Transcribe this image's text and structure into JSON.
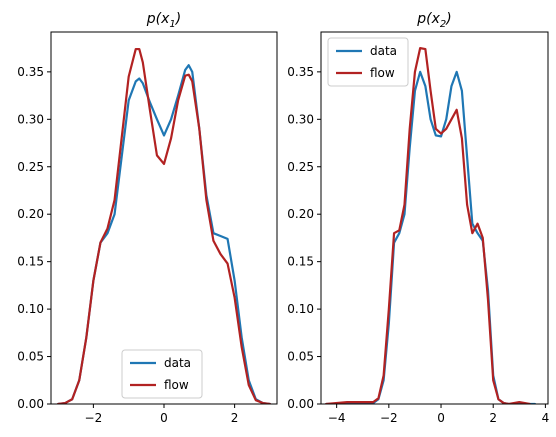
{
  "chart_data": [
    {
      "type": "line",
      "title": "p(x1)",
      "title_main": "p(x",
      "title_sub": "1",
      "title_end": ")",
      "xlabel": "",
      "ylabel": "",
      "xlim": [
        -3.2,
        3.2
      ],
      "ylim": [
        0,
        0.392
      ],
      "xticks": [
        -2,
        0,
        2
      ],
      "yticks": [
        0.0,
        0.05,
        0.1,
        0.15,
        0.2,
        0.25,
        0.3,
        0.35
      ],
      "xtick_labels": [
        "−2",
        "0",
        "2"
      ],
      "ytick_labels": [
        "0.00",
        "0.05",
        "0.10",
        "0.15",
        "0.20",
        "0.25",
        "0.30",
        "0.35"
      ],
      "grid": false,
      "legend": "lower-center",
      "series": [
        {
          "name": "data",
          "color": "#1f77b4",
          "x": [
            -3.0,
            -2.8,
            -2.6,
            -2.4,
            -2.2,
            -2.0,
            -1.8,
            -1.6,
            -1.4,
            -1.2,
            -1.0,
            -0.8,
            -0.7,
            -0.6,
            -0.4,
            -0.2,
            0.0,
            0.2,
            0.4,
            0.6,
            0.7,
            0.8,
            1.0,
            1.2,
            1.4,
            1.6,
            1.8,
            2.0,
            2.2,
            2.4,
            2.6,
            2.8,
            3.0
          ],
          "y": [
            0.0,
            0.001,
            0.005,
            0.025,
            0.07,
            0.13,
            0.17,
            0.18,
            0.2,
            0.26,
            0.32,
            0.34,
            0.343,
            0.338,
            0.318,
            0.3,
            0.283,
            0.3,
            0.325,
            0.352,
            0.357,
            0.35,
            0.29,
            0.22,
            0.18,
            0.177,
            0.174,
            0.13,
            0.07,
            0.025,
            0.005,
            0.001,
            0.0
          ]
        },
        {
          "name": "flow",
          "color": "#b22222",
          "x": [
            -3.0,
            -2.8,
            -2.6,
            -2.4,
            -2.2,
            -2.0,
            -1.8,
            -1.6,
            -1.4,
            -1.2,
            -1.0,
            -0.8,
            -0.7,
            -0.6,
            -0.4,
            -0.2,
            0.0,
            0.2,
            0.4,
            0.6,
            0.7,
            0.8,
            1.0,
            1.2,
            1.4,
            1.6,
            1.8,
            2.0,
            2.2,
            2.4,
            2.6,
            2.8,
            3.0
          ],
          "y": [
            0.0,
            0.001,
            0.005,
            0.025,
            0.07,
            0.13,
            0.17,
            0.185,
            0.215,
            0.28,
            0.345,
            0.374,
            0.374,
            0.36,
            0.31,
            0.262,
            0.253,
            0.28,
            0.32,
            0.346,
            0.347,
            0.34,
            0.29,
            0.215,
            0.172,
            0.158,
            0.148,
            0.112,
            0.06,
            0.02,
            0.004,
            0.001,
            0.0
          ]
        }
      ]
    },
    {
      "type": "line",
      "title": "p(x2)",
      "title_main": "p(x",
      "title_sub": "2",
      "title_end": ")",
      "xlabel": "",
      "ylabel": "",
      "xlim": [
        -4.6,
        4.1
      ],
      "ylim": [
        0,
        0.392
      ],
      "xticks": [
        -4,
        -2,
        0,
        2,
        4
      ],
      "yticks": [
        0.0,
        0.05,
        0.1,
        0.15,
        0.2,
        0.25,
        0.3,
        0.35
      ],
      "xtick_labels": [
        "−4",
        "−2",
        "0",
        "2",
        "4"
      ],
      "ytick_labels": [
        "0.00",
        "0.05",
        "0.10",
        "0.15",
        "0.20",
        "0.25",
        "0.30",
        "0.35"
      ],
      "grid": false,
      "legend": "upper-left",
      "series": [
        {
          "name": "data",
          "color": "#1f77b4",
          "x": [
            -4.4,
            -3.0,
            -2.6,
            -2.4,
            -2.2,
            -2.0,
            -1.8,
            -1.6,
            -1.4,
            -1.2,
            -1.0,
            -0.8,
            -0.6,
            -0.4,
            -0.2,
            0.0,
            0.2,
            0.4,
            0.6,
            0.8,
            1.0,
            1.2,
            1.4,
            1.6,
            1.8,
            2.0,
            2.2,
            2.4,
            2.6,
            3.0,
            3.6
          ],
          "y": [
            0.0,
            0.0,
            0.001,
            0.005,
            0.025,
            0.085,
            0.17,
            0.18,
            0.2,
            0.27,
            0.33,
            0.35,
            0.335,
            0.3,
            0.283,
            0.282,
            0.3,
            0.335,
            0.35,
            0.33,
            0.26,
            0.19,
            0.18,
            0.172,
            0.12,
            0.03,
            0.005,
            0.001,
            0.0,
            0.0,
            0.0
          ]
        },
        {
          "name": "flow",
          "color": "#b22222",
          "x": [
            -4.4,
            -3.6,
            -3.0,
            -2.6,
            -2.4,
            -2.2,
            -2.0,
            -1.8,
            -1.6,
            -1.4,
            -1.2,
            -1.0,
            -0.8,
            -0.6,
            -0.4,
            -0.2,
            0.0,
            0.2,
            0.4,
            0.6,
            0.8,
            1.0,
            1.2,
            1.4,
            1.6,
            1.8,
            2.0,
            2.2,
            2.4,
            2.6,
            3.0,
            3.4
          ],
          "y": [
            0.0,
            0.002,
            0.002,
            0.002,
            0.006,
            0.03,
            0.1,
            0.18,
            0.183,
            0.21,
            0.29,
            0.35,
            0.375,
            0.374,
            0.33,
            0.29,
            0.285,
            0.29,
            0.3,
            0.31,
            0.28,
            0.21,
            0.18,
            0.19,
            0.175,
            0.11,
            0.025,
            0.005,
            0.001,
            0.0,
            0.002,
            0.0
          ]
        }
      ]
    }
  ]
}
